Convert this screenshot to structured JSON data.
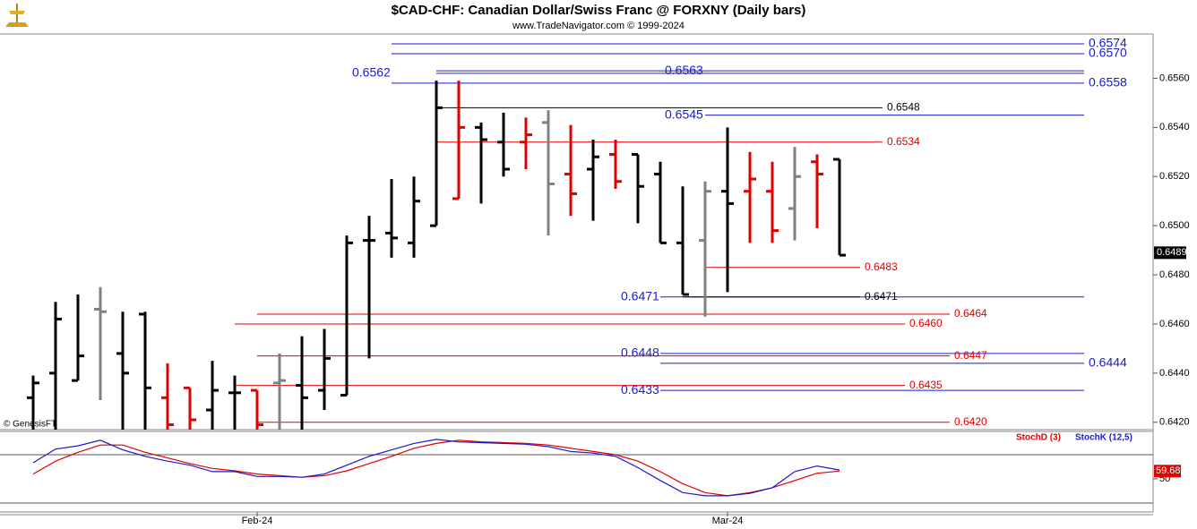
{
  "chart_data": [
    {
      "type": "ohlc",
      "title": "$CAD-CHF:  Canadian Dollar/Swiss Franc @ FORXNY  (Daily bars)",
      "subtitle": "www.TradeNavigator.com © 1999-2024",
      "watermark": "© GenesisFT",
      "categories": [
        null,
        null,
        null,
        null,
        null,
        null,
        null,
        null,
        null,
        null,
        "Feb-24",
        null,
        null,
        null,
        null,
        null,
        null,
        null,
        null,
        null,
        null,
        null,
        null,
        null,
        null,
        null,
        null,
        null,
        null,
        null,
        null,
        "Mar-24",
        null,
        null,
        null,
        null,
        null
      ],
      "open": [
        0.643,
        0.644,
        0.6437,
        0.6466,
        0.6448,
        0.6464,
        0.643,
        0.6434,
        0.6425,
        0.6432,
        0.6433,
        0.6436,
        0.6435,
        0.6433,
        0.6431,
        0.6494,
        0.6497,
        0.6493,
        0.65,
        0.6511,
        0.654,
        0.6534,
        0.6534,
        0.6542,
        0.6521,
        0.6523,
        0.6529,
        0.6529,
        0.6521,
        0.6493,
        0.6494,
        0.6514,
        0.6514,
        0.6514,
        0.6507,
        0.6526,
        0.6527
      ],
      "high": [
        0.6439,
        0.6469,
        0.6472,
        0.6475,
        0.6465,
        0.6465,
        0.6444,
        0.6434,
        0.6445,
        0.6439,
        0.6433,
        0.6448,
        0.6455,
        0.6458,
        0.6496,
        0.6504,
        0.6519,
        0.652,
        0.6559,
        0.6559,
        0.6542,
        0.6546,
        0.6544,
        0.6547,
        0.6541,
        0.6535,
        0.6535,
        0.6529,
        0.6526,
        0.6516,
        0.6518,
        0.654,
        0.653,
        0.6526,
        0.6532,
        0.6529,
        0.6527
      ],
      "low": [
        0.6417,
        0.6417,
        0.6437,
        0.6429,
        0.6417,
        0.6417,
        0.6417,
        0.6417,
        0.6417,
        0.6417,
        0.6417,
        0.6417,
        0.6417,
        0.6425,
        0.6431,
        0.6446,
        0.6487,
        0.6487,
        0.65,
        0.6511,
        0.6509,
        0.652,
        0.6523,
        0.6496,
        0.6504,
        0.6502,
        0.6515,
        0.6501,
        0.6493,
        0.6472,
        0.6463,
        0.6473,
        0.6493,
        0.6493,
        0.6494,
        0.6499,
        0.6488
      ],
      "close": [
        0.6436,
        0.6462,
        0.6447,
        0.6465,
        0.644,
        0.6434,
        0.6419,
        0.6421,
        0.6433,
        0.6432,
        0.6419,
        0.6437,
        0.643,
        0.6446,
        0.6493,
        0.6494,
        0.6495,
        0.651,
        0.6548,
        0.654,
        0.6535,
        0.6523,
        0.6537,
        0.6517,
        0.6513,
        0.6528,
        0.6518,
        0.6516,
        0.6493,
        0.6472,
        0.6514,
        0.6509,
        0.6519,
        0.6498,
        0.652,
        0.6521,
        0.6488
      ],
      "colors": [
        "#000000",
        "#000000",
        "#000000",
        "#808080",
        "#000000",
        "#000000",
        "#e00000",
        "#e00000",
        "#000000",
        "#000000",
        "#e00000",
        "#808080",
        "#000000",
        "#000000",
        "#000000",
        "#000000",
        "#000000",
        "#000000",
        "#000000",
        "#e00000",
        "#000000",
        "#000000",
        "#e00000",
        "#808080",
        "#e00000",
        "#000000",
        "#e00000",
        "#000000",
        "#000000",
        "#000000",
        "#808080",
        "#000000",
        "#e00000",
        "#e00000",
        "#808080",
        "#e00000",
        "#000000"
      ],
      "ylim": [
        0.6417,
        0.6578
      ],
      "yticks": [
        {
          "value": 0.642,
          "label": "0.6420"
        },
        {
          "value": 0.644,
          "label": "0.6440"
        },
        {
          "value": 0.646,
          "label": "0.6460"
        },
        {
          "value": 0.648,
          "label": "0.6480"
        },
        {
          "value": 0.65,
          "label": "0.6500"
        },
        {
          "value": 0.652,
          "label": "0.6520"
        },
        {
          "value": 0.654,
          "label": "0.6540"
        },
        {
          "value": 0.656,
          "label": "0.6560"
        }
      ],
      "last_price": 0.6489,
      "levels": [
        {
          "value": 0.6574,
          "color": "#1a1acc"
        },
        {
          "value": {
            "value": 0.657,
            "label": "0.6570"
          },
          "color": "#1a1acc"
        },
        {
          "value": 0.6563,
          "color": "#1a1acc"
        },
        {
          "value": 0.6562,
          "color": "#1a1acc"
        },
        {
          "value": 0.6558,
          "color": "#1a1acc"
        },
        {
          "value": 0.6548,
          "color": "#000000"
        },
        {
          "value": 0.6545,
          "color": "#1a1acc"
        },
        {
          "value": 0.6534,
          "color": "#e00000"
        },
        {
          "value": 0.6483,
          "color": "#e00000"
        },
        {
          "value": 0.6471,
          "color": "#1a1acc"
        },
        {
          "value": 0.6471,
          "color": "#000000"
        },
        {
          "value": 0.6464,
          "color": "#e00000"
        },
        {
          "value": {
            "value": 0.646,
            "label": "0.6460"
          },
          "color": "#e00000"
        },
        {
          "value": 0.6448,
          "color": "#1a1acc"
        },
        {
          "value": 0.6447,
          "color": "#e00000"
        },
        {
          "value": 0.6444,
          "color": "#1a1acc"
        },
        {
          "value": 0.6435,
          "color": "#e00000"
        },
        {
          "value": 0.6433,
          "color": "#1a1acc"
        },
        {
          "value": {
            "value": 0.642,
            "label": "0.6420"
          },
          "color": "#e00000"
        }
      ]
    },
    {
      "type": "line",
      "series": [
        {
          "name": "StochD (3)",
          "color": "#e00000",
          "values": [
            56,
            72,
            83,
            92,
            92,
            83,
            76,
            69,
            63,
            60,
            56,
            54,
            52,
            54,
            60,
            69,
            78,
            88,
            94,
            98,
            96,
            95,
            94,
            92,
            88,
            84,
            80,
            72,
            59,
            44,
            33,
            29,
            33,
            39,
            48,
            57,
            59.68
          ]
        },
        {
          "name": "StochK (12,5)",
          "color": "#1a1acc",
          "values": [
            70,
            87,
            91,
            98,
            86,
            78,
            72,
            67,
            59,
            59,
            53,
            53,
            52,
            56,
            67,
            78,
            86,
            94,
            99,
            96,
            95,
            94,
            93,
            90,
            84,
            82,
            78,
            64,
            48,
            33,
            29,
            29,
            32,
            39,
            59,
            66,
            61
          ]
        }
      ],
      "ylim": [
        15,
        110
      ],
      "yticks": [
        50
      ],
      "bands": [
        20,
        80
      ],
      "last_value": 59.68
    }
  ]
}
